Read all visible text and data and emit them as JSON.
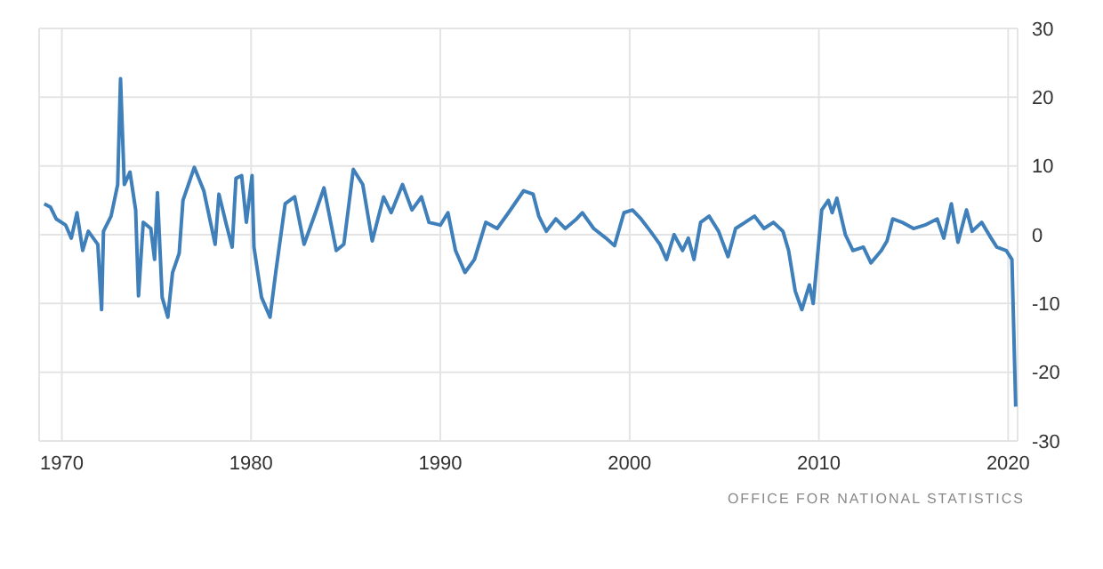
{
  "chart_data": {
    "type": "line",
    "x": [
      1969.07,
      1969.4,
      1969.7,
      1970.2,
      1970.5,
      1970.8,
      1971.1,
      1971.4,
      1971.9,
      1972.1,
      1972.2,
      1972.6,
      1972.95,
      1973.1,
      1973.3,
      1973.6,
      1973.9,
      1974.05,
      1974.3,
      1974.7,
      1974.9,
      1975.05,
      1975.3,
      1975.6,
      1975.85,
      1976.2,
      1976.4,
      1977.0,
      1977.5,
      1978.1,
      1978.3,
      1978.7,
      1979.0,
      1979.2,
      1979.5,
      1979.75,
      1980.05,
      1980.15,
      1980.55,
      1981.0,
      1981.3,
      1981.8,
      1982.3,
      1982.8,
      1983.4,
      1983.85,
      1984.5,
      1984.9,
      1985.4,
      1985.9,
      1986.4,
      1987.0,
      1987.4,
      1988.0,
      1988.5,
      1989.0,
      1989.4,
      1990.0,
      1990.4,
      1990.8,
      1991.3,
      1991.8,
      1992.4,
      1993.0,
      1993.6,
      1994.4,
      1994.9,
      1995.2,
      1995.6,
      1996.1,
      1996.6,
      1997.2,
      1997.5,
      1998.1,
      1998.75,
      1999.2,
      1999.7,
      2000.15,
      2000.6,
      2001.1,
      2001.6,
      2001.95,
      2002.35,
      2002.8,
      2003.1,
      2003.4,
      2003.75,
      2004.2,
      2004.7,
      2005.2,
      2005.6,
      2006.1,
      2006.6,
      2007.1,
      2007.6,
      2008.1,
      2008.4,
      2008.75,
      2009.1,
      2009.5,
      2009.7,
      2010.15,
      2010.5,
      2010.7,
      2010.95,
      2011.4,
      2011.8,
      2012.35,
      2012.75,
      2013.3,
      2013.6,
      2013.9,
      2014.4,
      2015.0,
      2015.6,
      2016.25,
      2016.6,
      2017.0,
      2017.35,
      2017.8,
      2018.1,
      2018.6,
      2019.1,
      2019.4,
      2019.9,
      2020.2,
      2020.4
    ],
    "series": [
      {
        "color": "#3f7fba",
        "values": [
          4.5,
          4,
          2.3,
          1.4,
          -0.5,
          3.2,
          -2.3,
          0.5,
          -1.4,
          -10.9,
          0.5,
          2.7,
          7.3,
          22.7,
          7.3,
          9.1,
          3.6,
          -8.9,
          1.8,
          0.9,
          -3.6,
          6.1,
          -9.1,
          -12,
          -5.5,
          -2.7,
          5,
          9.8,
          6.4,
          -1.4,
          5.9,
          1.4,
          -1.8,
          8.2,
          8.6,
          1.8,
          8.6,
          -1.8,
          -9.1,
          -12,
          -5.5,
          4.5,
          5.5,
          -1.4,
          3.2,
          6.8,
          -2.3,
          -1.4,
          9.5,
          7.3,
          -0.9,
          5.5,
          3.2,
          7.3,
          3.6,
          5.5,
          1.8,
          1.4,
          3.2,
          -2.3,
          -5.5,
          -3.6,
          1.8,
          0.9,
          3.2,
          6.4,
          5.9,
          2.7,
          0.5,
          2.3,
          0.9,
          2.3,
          3.2,
          0.9,
          -0.5,
          -1.6,
          3.2,
          3.6,
          2.3,
          0.5,
          -1.4,
          -3.6,
          0,
          -2.3,
          -0.5,
          -3.6,
          1.8,
          2.7,
          0.5,
          -3.2,
          0.9,
          1.8,
          2.7,
          0.9,
          1.8,
          0.5,
          -2.3,
          -8.2,
          -10.9,
          -7.3,
          -10,
          3.6,
          5,
          3.2,
          5.3,
          0,
          -2.3,
          -1.8,
          -4.1,
          -2.3,
          -0.9,
          2.3,
          1.8,
          0.9,
          1.4,
          2.3,
          -0.5,
          4.5,
          -1.1,
          3.6,
          0.5,
          1.8,
          -0.5,
          -1.8,
          -2.3,
          -3.6,
          -25
        ]
      }
    ],
    "xlim": [
      1968.8,
      2020.5
    ],
    "xticks": [
      1970,
      1980,
      1990,
      2000,
      2010,
      2020
    ],
    "ylim": [
      -30,
      30
    ],
    "yticks": [
      -30,
      -20,
      -10,
      0,
      10,
      20,
      30
    ],
    "grid": true,
    "marker": "none",
    "line_style": "solid",
    "annotations": [
      "OFFICE FOR NATIONAL STATISTICS"
    ]
  }
}
